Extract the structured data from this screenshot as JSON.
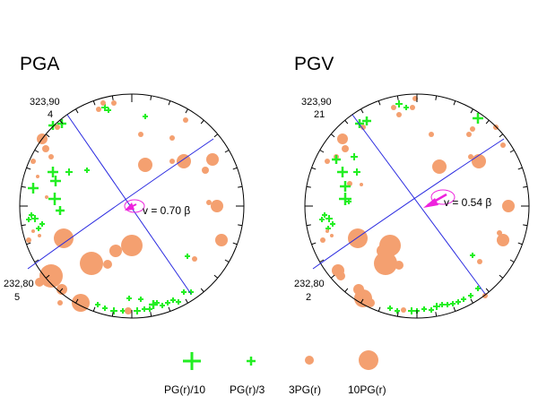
{
  "panels": [
    {
      "title": "PGA",
      "nodal_top": "323,90",
      "count_top": "4",
      "nodal_bottom": "232,80",
      "count_bottom": "5",
      "velocity_label": "v = 0.70 β"
    },
    {
      "title": "PGV",
      "nodal_top": "323,90",
      "count_top": "21",
      "nodal_bottom": "232,80",
      "count_bottom": "2",
      "velocity_label": "v = 0.54 β"
    }
  ],
  "legend": [
    {
      "label": "PG(r)/10",
      "symbol": "large-cross"
    },
    {
      "label": "PG(r)/3",
      "symbol": "small-cross"
    },
    {
      "label": "3PG(r)",
      "symbol": "small-circle"
    },
    {
      "label": "10PG(r)",
      "symbol": "large-circle"
    }
  ],
  "colors": {
    "cross": "#22ee22",
    "circle": "#f4a070",
    "plane": "#2a2ae0",
    "arrow": "#ee22dd",
    "outline": "#000000"
  }
}
